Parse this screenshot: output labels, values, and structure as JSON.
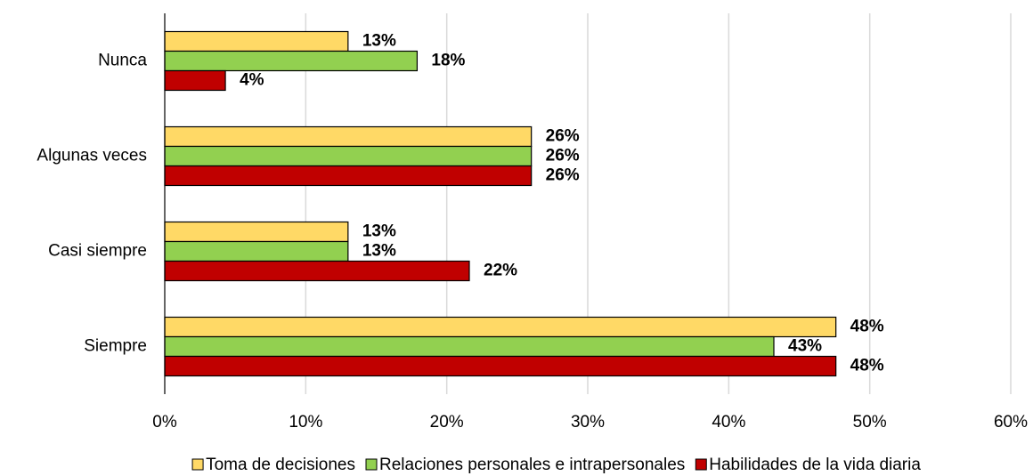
{
  "chart_data": {
    "type": "bar",
    "orientation": "horizontal",
    "categories": [
      "Nunca",
      "Algunas veces",
      "Casi siempre",
      "Siempre"
    ],
    "series": [
      {
        "name": "Toma de decisiones",
        "color": "#ffd966",
        "values": [
          13.0,
          26.0,
          13.0,
          47.6
        ],
        "value_labels": [
          "13%",
          "26%",
          "13%",
          "48%"
        ]
      },
      {
        "name": "Relaciones personales e intrapersonales",
        "color": "#92d050",
        "values": [
          17.9,
          26.0,
          13.0,
          43.2
        ],
        "value_labels": [
          "18%",
          "26%",
          "13%",
          "43%"
        ]
      },
      {
        "name": "Habilidades de la vida diaria",
        "color": "#c00000",
        "values": [
          4.3,
          26.0,
          21.6,
          47.6
        ],
        "value_labels": [
          "4%",
          "26%",
          "22%",
          "48%"
        ]
      }
    ],
    "xlim": [
      0,
      60
    ],
    "xticks": [
      {
        "value": 0,
        "label": "0%"
      },
      {
        "value": 10,
        "label": "10%"
      },
      {
        "value": 20,
        "label": "20%"
      },
      {
        "value": 30,
        "label": "30%"
      },
      {
        "value": 40,
        "label": "40%"
      },
      {
        "value": 50,
        "label": "50%"
      },
      {
        "value": 60,
        "label": "60%"
      }
    ],
    "grid": true,
    "legend": "bottom"
  }
}
